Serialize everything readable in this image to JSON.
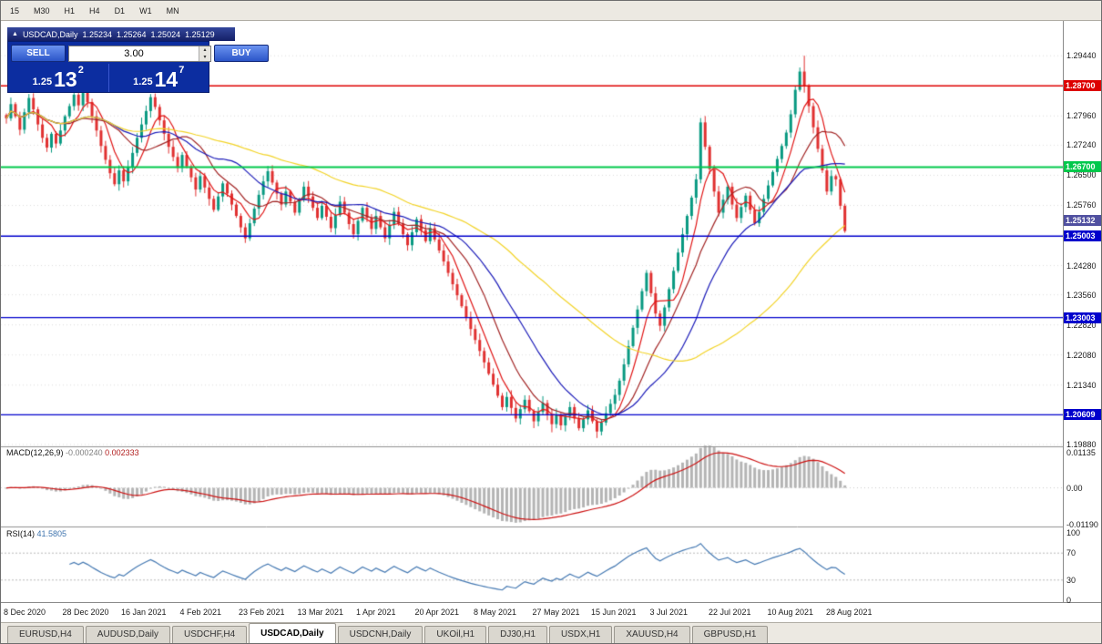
{
  "toolbar": {
    "timeframes": [
      "15",
      "M30",
      "H1",
      "H4",
      "D1",
      "W1",
      "MN"
    ]
  },
  "chart_window": {
    "collapse_icon": "▲",
    "title": "USDCAD,Daily",
    "ohlc": {
      "open": "1.25234",
      "high": "1.25264",
      "low": "1.25024",
      "close": "1.25129"
    }
  },
  "trade_panel": {
    "sell_label": "SELL",
    "buy_label": "BUY",
    "volume": "3.00",
    "spin_up": "▴",
    "spin_down": "▾",
    "sell_price": {
      "prefix": "1.25",
      "pips": "13",
      "point": "2"
    },
    "buy_price": {
      "prefix": "1.25",
      "pips": "14",
      "point": "7"
    }
  },
  "chart_data": {
    "type": "candlestick",
    "symbol": "USDCAD",
    "timeframe": "Daily",
    "ylim": [
      1.1988,
      1.3016
    ],
    "bull_color": "#089981",
    "bear_color": "#e03030",
    "grid_color": "#dcdcdc",
    "closes": [
      1.279,
      1.2825,
      1.2795,
      1.2762,
      1.2805,
      1.284,
      1.2812,
      1.2775,
      1.2742,
      1.2718,
      1.2752,
      1.2728,
      1.276,
      1.2795,
      1.282,
      1.2848,
      1.2822,
      1.2855,
      1.283,
      1.2795,
      1.276,
      1.2722,
      1.2688,
      1.2655,
      1.2628,
      1.2662,
      1.2635,
      1.267,
      1.2705,
      1.2742,
      1.2775,
      1.2808,
      1.2842,
      1.2818,
      1.2785,
      1.2752,
      1.272,
      1.2695,
      1.2668,
      1.27,
      1.2672,
      1.2645,
      1.2615,
      1.2648,
      1.262,
      1.2592,
      1.2565,
      1.2598,
      1.263,
      1.2605,
      1.2578,
      1.255,
      1.2522,
      1.2495,
      1.2532,
      1.2568,
      1.2602,
      1.2635,
      1.266,
      1.2632,
      1.2605,
      1.2578,
      1.261,
      1.2585,
      1.2558,
      1.259,
      1.2622,
      1.2598,
      1.257,
      1.2545,
      1.2575,
      1.2548,
      1.252,
      1.2552,
      1.2585,
      1.2558,
      1.253,
      1.2505,
      1.2538,
      1.257,
      1.2545,
      1.2518,
      1.255,
      1.2522,
      1.2495,
      1.2528,
      1.256,
      1.2532,
      1.2505,
      1.2478,
      1.251,
      1.2542,
      1.2515,
      1.2488,
      1.252,
      1.2492,
      1.2465,
      1.2438,
      1.241,
      1.2382,
      1.2355,
      1.2328,
      1.23,
      1.2272,
      1.2245,
      1.2218,
      1.219,
      1.2162,
      1.2135,
      1.2108,
      1.208,
      1.2105,
      1.2078,
      1.2052,
      1.2075,
      1.2098,
      1.207,
      1.2045,
      1.2068,
      1.209,
      1.2062,
      1.2038,
      1.206,
      1.2035,
      1.2058,
      1.208,
      1.2052,
      1.2028,
      1.205,
      1.2072,
      1.2045,
      1.202,
      1.2042,
      1.2065,
      1.2088,
      1.211,
      1.2145,
      1.2185,
      1.223,
      1.2275,
      1.232,
      1.2365,
      1.241,
      1.236,
      1.231,
      1.228,
      1.2325,
      1.237,
      1.2415,
      1.246,
      1.2505,
      1.255,
      1.2595,
      1.264,
      1.278,
      1.272,
      1.2665,
      1.261,
      1.2558,
      1.259,
      1.2622,
      1.2578,
      1.2545,
      1.2572,
      1.26,
      1.2565,
      1.2532,
      1.256,
      1.2592,
      1.2625,
      1.2658,
      1.269,
      1.2722,
      1.2755,
      1.28,
      1.286,
      1.2905,
      1.287,
      1.282,
      1.2768,
      1.2715,
      1.2662,
      1.261,
      1.2648,
      1.264,
      1.2575,
      1.25129
    ],
    "wick_overrides": {
      "121": {
        "low": 1.2018
      },
      "131": {
        "low": 1.2004
      },
      "176": {
        "high": 1.2915
      },
      "177": {
        "high": 1.2944
      }
    },
    "moving_averages": [
      {
        "period": 6,
        "color": "#e01515"
      },
      {
        "period": 13,
        "color": "#a22525"
      },
      {
        "period": 24,
        "color": "#1a1ab8"
      },
      {
        "period": 55,
        "color": "#f2d327"
      }
    ],
    "hlines": [
      {
        "price": 1.287,
        "label": "1.28700",
        "color": "#dd0000",
        "width": 1.5
      },
      {
        "price": 1.267,
        "label": "1.26700",
        "color": "#00c84b",
        "width": 2
      },
      {
        "price": 1.25003,
        "label": "1.25003",
        "color": "#0000cc",
        "width": 1.3
      },
      {
        "price": 1.23003,
        "label": "1.23003",
        "color": "#0000cc",
        "width": 1.3
      },
      {
        "price": 1.20609,
        "label": "1.20609",
        "color": "#0000cc",
        "width": 1.3
      }
    ],
    "current_price": {
      "value": 1.25132,
      "label": "1.25132",
      "color": "#5050a0"
    },
    "y_axis_plain": [
      1.2944,
      1.2796,
      1.2724,
      1.265,
      1.2576,
      1.2428,
      1.2356,
      1.2282,
      1.2208,
      1.2134,
      1.1988
    ],
    "x_labels": [
      "8 Dec 2020",
      "28 Dec 2020",
      "16 Jan 2021",
      "4 Feb 2021",
      "23 Feb 2021",
      "13 Mar 2021",
      "1 Apr 2021",
      "20 Apr 2021",
      "8 May 2021",
      "27 May 2021",
      "15 Jun 2021",
      "3 Jul 2021",
      "22 Jul 2021",
      "10 Aug 2021",
      "28 Aug 2021"
    ],
    "macd": {
      "name": "MACD(12,26,9)",
      "main_value": "-0.000240",
      "signal_value": "0.002333",
      "fast": 12,
      "slow": 26,
      "signal": 9,
      "ylim": [
        -0.0119,
        0.01135
      ],
      "scale": [
        {
          "v": 0.01135,
          "label": "0.01135"
        },
        {
          "v": 0,
          "label": "0.00"
        },
        {
          "v": -0.0119,
          "label": "-0.01190"
        }
      ],
      "hist_color": "#b4b4b4",
      "signal_color": "#cc1111"
    },
    "rsi": {
      "name": "RSI(14)",
      "value": "41.5805",
      "period": 14,
      "levels": [
        70,
        30
      ],
      "scale": [
        {
          "v": 100,
          "label": "100"
        },
        {
          "v": 70,
          "label": "70"
        },
        {
          "v": 30,
          "label": "30"
        },
        {
          "v": 0,
          "label": "0"
        }
      ],
      "line_color": "#4579b2"
    }
  },
  "tabs": [
    {
      "label": "EURUSD,H4",
      "active": false
    },
    {
      "label": "AUDUSD,Daily",
      "active": false
    },
    {
      "label": "USDCHF,H4",
      "active": false
    },
    {
      "label": "USDCAD,Daily",
      "active": true
    },
    {
      "label": "USDCNH,Daily",
      "active": false
    },
    {
      "label": "UKOil,H1",
      "active": false
    },
    {
      "label": "DJ30,H1",
      "active": false
    },
    {
      "label": "USDX,H1",
      "active": false
    },
    {
      "label": "XAUUSD,H4",
      "active": false
    },
    {
      "label": "GBPUSD,H1",
      "active": false
    }
  ]
}
